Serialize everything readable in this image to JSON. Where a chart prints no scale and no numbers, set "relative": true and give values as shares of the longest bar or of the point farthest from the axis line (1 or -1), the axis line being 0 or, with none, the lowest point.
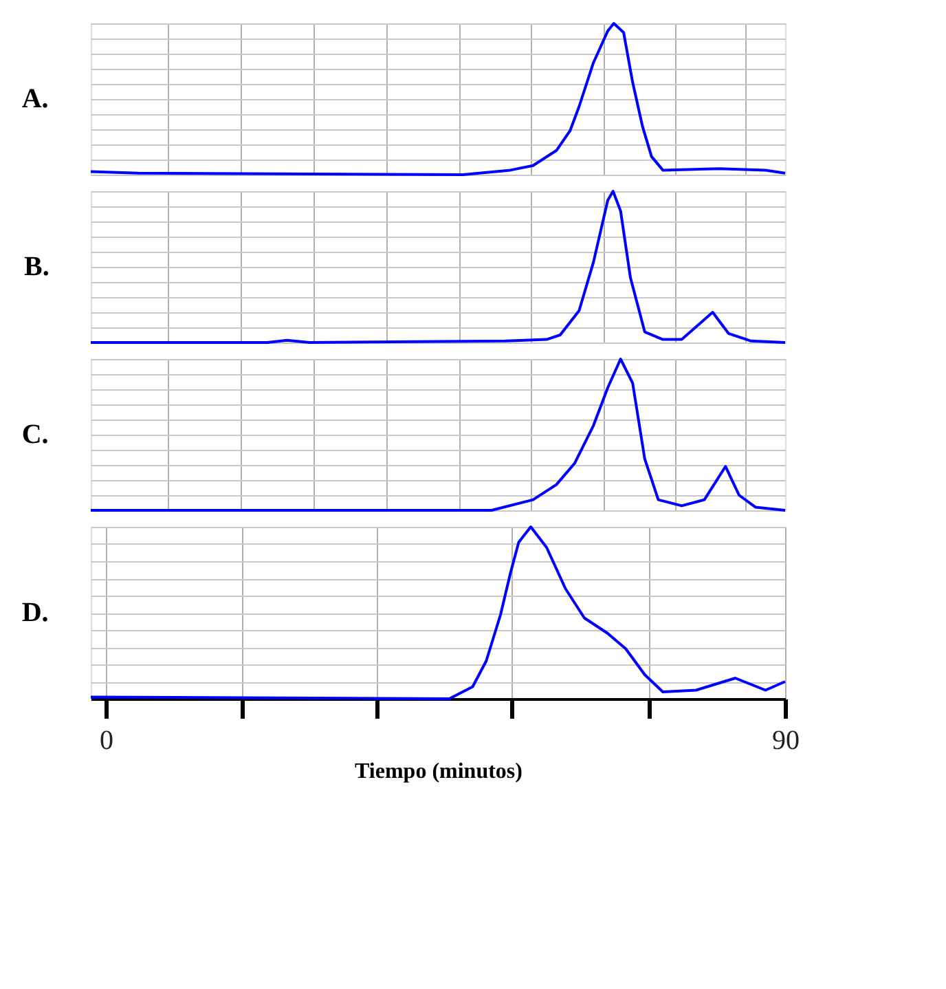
{
  "chart_data": [
    {
      "type": "line",
      "title": "A.",
      "relative": true,
      "xlim": [
        -2,
        90
      ],
      "xticks": [
        {
          "value": 8.2,
          "label": null
        },
        {
          "value": 17.9,
          "label": null
        },
        {
          "value": 27.5,
          "label": null
        },
        {
          "value": 37.1,
          "label": null
        },
        {
          "value": 46.8,
          "label": null
        },
        {
          "value": 56.3,
          "label": null
        },
        {
          "value": 65.9,
          "label": null
        },
        {
          "value": 75.4,
          "label": null
        },
        {
          "value": 84.7,
          "label": null
        }
      ],
      "grid": true,
      "tick_labels": false,
      "series": [
        {
          "color": "#0000ff",
          "x": [
            -2,
            4.3,
            47.3,
            53.6,
            56.6,
            59.7,
            61.5,
            62.7,
            64.6,
            66.5,
            67.3,
            68.6,
            69.8,
            71.1,
            72.3,
            73.8,
            81.3,
            87.4,
            90
          ],
          "values": [
            0.02,
            0.01,
            0.0,
            0.03,
            0.06,
            0.16,
            0.29,
            0.45,
            0.74,
            0.95,
            1,
            0.94,
            0.61,
            0.32,
            0.12,
            0.03,
            0.04,
            0.03,
            0.01
          ]
        }
      ]
    },
    {
      "type": "line",
      "title": "B.",
      "relative": true,
      "xlim": [
        -2,
        90
      ],
      "xticks": [
        {
          "value": 8.2,
          "label": null
        },
        {
          "value": 17.9,
          "label": null
        },
        {
          "value": 27.5,
          "label": null
        },
        {
          "value": 37.1,
          "label": null
        },
        {
          "value": 46.8,
          "label": null
        },
        {
          "value": 56.3,
          "label": null
        },
        {
          "value": 65.9,
          "label": null
        },
        {
          "value": 75.4,
          "label": null
        },
        {
          "value": 84.7,
          "label": null
        }
      ],
      "grid": true,
      "tick_labels": false,
      "series": [
        {
          "color": "#0000ff",
          "x": [
            -2,
            21.4,
            24,
            27,
            52.9,
            58.4,
            60.2,
            62.7,
            64.6,
            66.5,
            67.2,
            68.2,
            69.5,
            71.4,
            73.8,
            76.3,
            80.4,
            82.5,
            85.5,
            90
          ],
          "values": [
            0.0,
            0.0,
            0.015,
            0.0,
            0.01,
            0.02,
            0.05,
            0.21,
            0.53,
            0.94,
            1,
            0.87,
            0.43,
            0.07,
            0.02,
            0.02,
            0.2,
            0.06,
            0.01,
            0.0
          ]
        }
      ]
    },
    {
      "type": "line",
      "title": "C.",
      "relative": true,
      "xlim": [
        -2,
        90
      ],
      "xticks": [
        {
          "value": 8.2,
          "label": null
        },
        {
          "value": 17.9,
          "label": null
        },
        {
          "value": 27.5,
          "label": null
        },
        {
          "value": 37.1,
          "label": null
        },
        {
          "value": 46.8,
          "label": null
        },
        {
          "value": 56.3,
          "label": null
        },
        {
          "value": 65.9,
          "label": null
        },
        {
          "value": 75.4,
          "label": null
        },
        {
          "value": 84.7,
          "label": null
        }
      ],
      "grid": true,
      "tick_labels": false,
      "series": [
        {
          "color": "#0000ff",
          "x": [
            -2,
            51.1,
            56.6,
            59.7,
            62.1,
            64.6,
            66.5,
            68.2,
            69.8,
            71.4,
            73.2,
            76.3,
            79.3,
            82.1,
            83.9,
            86.1,
            90
          ],
          "values": [
            0,
            0,
            0.07,
            0.17,
            0.31,
            0.56,
            0.81,
            1,
            0.84,
            0.34,
            0.07,
            0.03,
            0.07,
            0.29,
            0.1,
            0.02,
            0
          ]
        }
      ]
    },
    {
      "type": "line",
      "title": "D.",
      "xlabel": "Tiempo (minutos)",
      "relative": true,
      "xlim": [
        -2,
        90
      ],
      "xticks": [
        0,
        {
          "value": 18.0,
          "label": null
        },
        {
          "value": 35.9,
          "label": null
        },
        {
          "value": 53.8,
          "label": null
        },
        {
          "value": 72.0,
          "label": null
        },
        90
      ],
      "grid": true,
      "tick_labels": "x",
      "series": [
        {
          "color": "#0000ff",
          "x": [
            -2,
            45.5,
            48.6,
            50.4,
            52.3,
            53.6,
            54.7,
            56.3,
            58.4,
            60.9,
            63.4,
            66.5,
            68.9,
            71.4,
            73.8,
            78.2,
            83.4,
            87.4,
            90
          ],
          "values": [
            0.01,
            0,
            0.07,
            0.22,
            0.49,
            0.73,
            0.91,
            1,
            0.88,
            0.64,
            0.47,
            0.38,
            0.29,
            0.14,
            0.04,
            0.05,
            0.12,
            0.05,
            0.1
          ]
        }
      ]
    }
  ]
}
